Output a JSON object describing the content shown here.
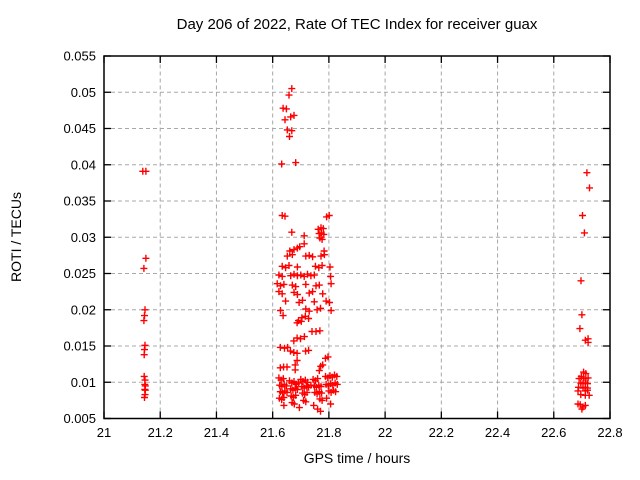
{
  "chart_data": {
    "type": "scatter",
    "title": "Day 206 of 2022, Rate Of TEC Index for receiver guax",
    "xlabel": "GPS time / hours",
    "ylabel": "ROTI / TECUs",
    "xlim": [
      21,
      22.8
    ],
    "ylim": [
      0.005,
      0.055
    ],
    "grid": true,
    "legend": "none",
    "marker_shape": "plus",
    "marker_color": "#ff0000",
    "grid_color": "#a8a8a8",
    "axis_color": "#000000",
    "background_color": "#ffffff",
    "xticks": [
      [
        21,
        "21"
      ],
      [
        21.2,
        "21.2"
      ],
      [
        21.4,
        "21.4"
      ],
      [
        21.6,
        "21.6"
      ],
      [
        21.8,
        "21.8"
      ],
      [
        22,
        "22"
      ],
      [
        22.2,
        "22.2"
      ],
      [
        22.4,
        "22.4"
      ],
      [
        22.6,
        "22.6"
      ],
      [
        22.8,
        "22.8"
      ]
    ],
    "yticks": [
      [
        0.005,
        "0.005"
      ],
      [
        0.01,
        "0.01"
      ],
      [
        0.015,
        "0.015"
      ],
      [
        0.02,
        "0.02"
      ],
      [
        0.025,
        "0.025"
      ],
      [
        0.03,
        "0.03"
      ],
      [
        0.035,
        "0.035"
      ],
      [
        0.04,
        "0.04"
      ],
      [
        0.045,
        "0.045"
      ],
      [
        0.05,
        "0.05"
      ],
      [
        0.055,
        "0.055"
      ]
    ],
    "series": [
      {
        "name": "ROTI",
        "points": [
          [
            21.138,
            0.0391
          ],
          [
            21.149,
            0.0391
          ],
          [
            21.149,
            0.0271
          ],
          [
            21.142,
            0.0257
          ],
          [
            21.146,
            0.02
          ],
          [
            21.144,
            0.0192
          ],
          [
            21.142,
            0.0185
          ],
          [
            21.146,
            0.0151
          ],
          [
            21.144,
            0.0145
          ],
          [
            21.143,
            0.0138
          ],
          [
            21.143,
            0.0108
          ],
          [
            21.146,
            0.0103
          ],
          [
            21.145,
            0.0097
          ],
          [
            21.147,
            0.0095
          ],
          [
            21.145,
            0.009
          ],
          [
            21.147,
            0.0089
          ],
          [
            21.146,
            0.0083
          ],
          [
            21.144,
            0.0079
          ],
          [
            21.668,
            0.0505
          ],
          [
            21.658,
            0.0496
          ],
          [
            21.637,
            0.0478
          ],
          [
            21.649,
            0.0477
          ],
          [
            21.676,
            0.0468
          ],
          [
            21.664,
            0.0466
          ],
          [
            21.644,
            0.0462
          ],
          [
            21.652,
            0.0448
          ],
          [
            21.668,
            0.0447
          ],
          [
            21.66,
            0.0439
          ],
          [
            21.632,
            0.0401
          ],
          [
            21.682,
            0.0403
          ],
          [
            21.634,
            0.033
          ],
          [
            21.644,
            0.0329
          ],
          [
            21.792,
            0.0328
          ],
          [
            21.801,
            0.033
          ],
          [
            21.762,
            0.0311
          ],
          [
            21.772,
            0.0313
          ],
          [
            21.78,
            0.0312
          ],
          [
            21.765,
            0.0305
          ],
          [
            21.773,
            0.0306
          ],
          [
            21.782,
            0.0304
          ],
          [
            21.768,
            0.0299
          ],
          [
            21.776,
            0.0297
          ],
          [
            21.668,
            0.0307
          ],
          [
            21.712,
            0.0302
          ],
          [
            21.661,
            0.0281
          ],
          [
            21.676,
            0.0283
          ],
          [
            21.688,
            0.0285
          ],
          [
            21.696,
            0.0287
          ],
          [
            21.712,
            0.0291
          ],
          [
            21.783,
            0.0281
          ],
          [
            21.652,
            0.0274
          ],
          [
            21.67,
            0.0276
          ],
          [
            21.718,
            0.0274
          ],
          [
            21.73,
            0.0275
          ],
          [
            21.742,
            0.0273
          ],
          [
            21.772,
            0.0274
          ],
          [
            21.784,
            0.0276
          ],
          [
            21.634,
            0.026
          ],
          [
            21.646,
            0.0258
          ],
          [
            21.658,
            0.0261
          ],
          [
            21.688,
            0.0259
          ],
          [
            21.752,
            0.026
          ],
          [
            21.764,
            0.0258
          ],
          [
            21.776,
            0.0261
          ],
          [
            21.804,
            0.0259
          ],
          [
            21.622,
            0.0248
          ],
          [
            21.634,
            0.0246
          ],
          [
            21.664,
            0.0247
          ],
          [
            21.676,
            0.0249
          ],
          [
            21.688,
            0.0247
          ],
          [
            21.7,
            0.0248
          ],
          [
            21.712,
            0.0246
          ],
          [
            21.724,
            0.0249
          ],
          [
            21.736,
            0.0247
          ],
          [
            21.748,
            0.0248
          ],
          [
            21.806,
            0.0246
          ],
          [
            21.616,
            0.0236
          ],
          [
            21.628,
            0.0233
          ],
          [
            21.64,
            0.0235
          ],
          [
            21.67,
            0.0234
          ],
          [
            21.682,
            0.0232
          ],
          [
            21.718,
            0.0235
          ],
          [
            21.754,
            0.0233
          ],
          [
            21.766,
            0.0234
          ],
          [
            21.808,
            0.0236
          ],
          [
            21.622,
            0.0225
          ],
          [
            21.634,
            0.0222
          ],
          [
            21.676,
            0.0224
          ],
          [
            21.688,
            0.0221
          ],
          [
            21.73,
            0.0223
          ],
          [
            21.742,
            0.0225
          ],
          [
            21.778,
            0.0222
          ],
          [
            21.646,
            0.0212
          ],
          [
            21.694,
            0.021
          ],
          [
            21.706,
            0.0213
          ],
          [
            21.748,
            0.0211
          ],
          [
            21.79,
            0.0212
          ],
          [
            21.802,
            0.021
          ],
          [
            21.628,
            0.0199
          ],
          [
            21.718,
            0.0201
          ],
          [
            21.73,
            0.0198
          ],
          [
            21.758,
            0.02
          ],
          [
            21.77,
            0.0202
          ],
          [
            21.808,
            0.0199
          ],
          [
            21.637,
            0.0192
          ],
          [
            21.692,
            0.0185
          ],
          [
            21.704,
            0.0189
          ],
          [
            21.716,
            0.0191
          ],
          [
            21.687,
            0.0182
          ],
          [
            21.702,
            0.0184
          ],
          [
            21.728,
            0.0188
          ],
          [
            21.74,
            0.017
          ],
          [
            21.754,
            0.017
          ],
          [
            21.768,
            0.0171
          ],
          [
            21.675,
            0.0157
          ],
          [
            21.687,
            0.0161
          ],
          [
            21.699,
            0.016
          ],
          [
            21.713,
            0.0163
          ],
          [
            21.627,
            0.0148
          ],
          [
            21.642,
            0.0147
          ],
          [
            21.653,
            0.0148
          ],
          [
            21.663,
            0.0143
          ],
          [
            21.675,
            0.0141
          ],
          [
            21.687,
            0.014
          ],
          [
            21.717,
            0.0143
          ],
          [
            21.728,
            0.0144
          ],
          [
            21.687,
            0.013
          ],
          [
            21.788,
            0.0133
          ],
          [
            21.797,
            0.0135
          ],
          [
            21.627,
            0.012
          ],
          [
            21.639,
            0.0121
          ],
          [
            21.651,
            0.0121
          ],
          [
            21.68,
            0.0124
          ],
          [
            21.778,
            0.0124
          ],
          [
            21.771,
            0.0122
          ],
          [
            21.766,
            0.0116
          ],
          [
            21.68,
            0.0117
          ],
          [
            21.622,
            0.0106
          ],
          [
            21.63,
            0.0103
          ],
          [
            21.638,
            0.0105
          ],
          [
            21.625,
            0.0096
          ],
          [
            21.633,
            0.0094
          ],
          [
            21.641,
            0.0097
          ],
          [
            21.649,
            0.0095
          ],
          [
            21.627,
            0.0087
          ],
          [
            21.635,
            0.0085
          ],
          [
            21.643,
            0.0088
          ],
          [
            21.651,
            0.0086
          ],
          [
            21.624,
            0.0078
          ],
          [
            21.632,
            0.0076
          ],
          [
            21.64,
            0.0079
          ],
          [
            21.64,
            0.0068
          ],
          [
            21.66,
            0.0102
          ],
          [
            21.668,
            0.0099
          ],
          [
            21.676,
            0.0101
          ],
          [
            21.684,
            0.0097
          ],
          [
            21.692,
            0.0099
          ],
          [
            21.664,
            0.0091
          ],
          [
            21.672,
            0.0089
          ],
          [
            21.68,
            0.0092
          ],
          [
            21.688,
            0.009
          ],
          [
            21.666,
            0.0081
          ],
          [
            21.674,
            0.0079
          ],
          [
            21.682,
            0.0082
          ],
          [
            21.669,
            0.0072
          ],
          [
            21.677,
            0.007
          ],
          [
            21.695,
            0.0065
          ],
          [
            21.7,
            0.0104
          ],
          [
            21.708,
            0.0101
          ],
          [
            21.716,
            0.0103
          ],
          [
            21.724,
            0.01
          ],
          [
            21.704,
            0.0094
          ],
          [
            21.712,
            0.0092
          ],
          [
            21.72,
            0.0095
          ],
          [
            21.728,
            0.0093
          ],
          [
            21.736,
            0.0096
          ],
          [
            21.706,
            0.0085
          ],
          [
            21.714,
            0.0083
          ],
          [
            21.722,
            0.0086
          ],
          [
            21.71,
            0.0075
          ],
          [
            21.718,
            0.0073
          ],
          [
            21.744,
            0.0104
          ],
          [
            21.752,
            0.0102
          ],
          [
            21.76,
            0.0105
          ],
          [
            21.748,
            0.0095
          ],
          [
            21.756,
            0.0093
          ],
          [
            21.764,
            0.0096
          ],
          [
            21.772,
            0.0094
          ],
          [
            21.75,
            0.0086
          ],
          [
            21.758,
            0.0084
          ],
          [
            21.766,
            0.0087
          ],
          [
            21.774,
            0.0085
          ],
          [
            21.768,
            0.0077
          ],
          [
            21.776,
            0.0075
          ],
          [
            21.76,
            0.0063
          ],
          [
            21.77,
            0.006
          ],
          [
            21.746,
            0.0068
          ],
          [
            21.788,
            0.0108
          ],
          [
            21.796,
            0.0106
          ],
          [
            21.804,
            0.0109
          ],
          [
            21.812,
            0.0107
          ],
          [
            21.82,
            0.011
          ],
          [
            21.828,
            0.0108
          ],
          [
            21.79,
            0.0097
          ],
          [
            21.798,
            0.0095
          ],
          [
            21.806,
            0.0098
          ],
          [
            21.814,
            0.0096
          ],
          [
            21.822,
            0.0099
          ],
          [
            21.83,
            0.0097
          ],
          [
            21.8,
            0.0088
          ],
          [
            21.808,
            0.0086
          ],
          [
            21.816,
            0.0089
          ],
          [
            21.824,
            0.0087
          ],
          [
            21.792,
            0.0078
          ],
          [
            21.806,
            0.007
          ],
          [
            22.718,
            0.0389
          ],
          [
            22.727,
            0.0368
          ],
          [
            22.702,
            0.033
          ],
          [
            22.709,
            0.0306
          ],
          [
            22.697,
            0.024
          ],
          [
            22.7,
            0.0193
          ],
          [
            22.693,
            0.0174
          ],
          [
            22.712,
            0.0158
          ],
          [
            22.722,
            0.016
          ],
          [
            22.722,
            0.0155
          ],
          [
            22.706,
            0.0114
          ],
          [
            22.714,
            0.0112
          ],
          [
            22.698,
            0.0108
          ],
          [
            22.69,
            0.0105
          ],
          [
            22.706,
            0.0106
          ],
          [
            22.714,
            0.0105
          ],
          [
            22.722,
            0.0106
          ],
          [
            22.696,
            0.0099
          ],
          [
            22.704,
            0.0098
          ],
          [
            22.712,
            0.0099
          ],
          [
            22.72,
            0.0098
          ],
          [
            22.688,
            0.0093
          ],
          [
            22.704,
            0.0092
          ],
          [
            22.712,
            0.0093
          ],
          [
            22.72,
            0.0092
          ],
          [
            22.686,
            0.0088
          ],
          [
            22.712,
            0.0088
          ],
          [
            22.72,
            0.0089
          ],
          [
            22.696,
            0.0083
          ],
          [
            22.712,
            0.0082
          ],
          [
            22.726,
            0.0082
          ],
          [
            22.686,
            0.007
          ],
          [
            22.694,
            0.0069
          ],
          [
            22.704,
            0.0066
          ],
          [
            22.712,
            0.0068
          ],
          [
            22.7,
            0.0063
          ]
        ]
      }
    ]
  }
}
